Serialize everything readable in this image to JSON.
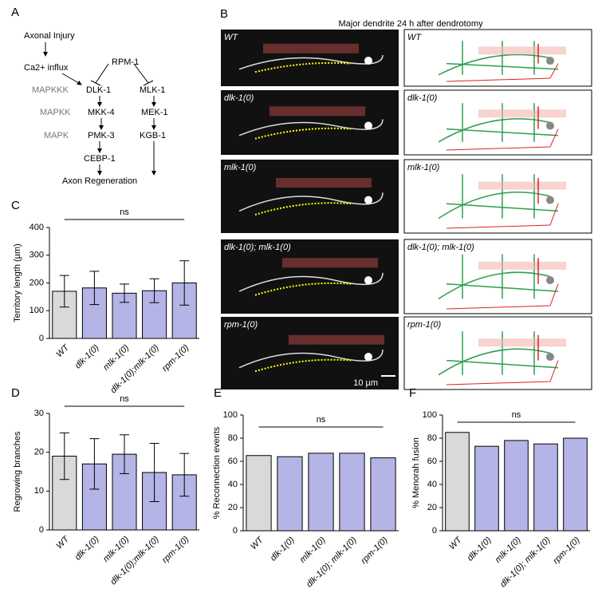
{
  "panel_a": {
    "label": "A",
    "injury": "Axonal Injury",
    "calcium": "Ca2+ influx",
    "rpm": "RPM-1",
    "mapkkk": "MAPKKK",
    "dlk": "DLK-1",
    "mlk": "MLK-1",
    "mapkk": "MAPKK",
    "mkk": "MKK-4",
    "mek": "MEK-1",
    "mapk": "MAPK",
    "pmk": "PMK-3",
    "kgb": "KGB-1",
    "cebp": "CEBP-1",
    "regen": "Axon Regeneration"
  },
  "panel_b": {
    "label": "B",
    "title": "Major dendrite 24 h after dendrotomy",
    "rows": [
      "WT",
      "dlk-1(0)",
      "mlk-1(0)",
      "dlk-1(0); mlk-1(0)",
      "rpm-1(0)"
    ],
    "scale": "10 µm"
  },
  "chart_data": [
    {
      "type": "bar",
      "panel_label": "C",
      "y_label": "Territory length (µm)",
      "annotation": "ns",
      "categories": [
        "WT",
        "dlk-1(0)",
        "mlk-1(0)",
        "dlk-1(0);mlk-1(0)",
        "rpm-1(0)"
      ],
      "values": [
        170,
        182,
        163,
        172,
        200
      ],
      "errors": [
        57,
        60,
        33,
        43,
        80
      ],
      "colors": [
        "#d9d9d9",
        "#b4b4e6",
        "#b4b4e6",
        "#b4b4e6",
        "#b4b4e6"
      ],
      "ylim": [
        0,
        400
      ],
      "yticks": [
        0,
        100,
        200,
        300,
        400
      ]
    },
    {
      "type": "bar",
      "panel_label": "D",
      "y_label": "Regrowing branches",
      "annotation": "ns",
      "categories": [
        "WT",
        "dlk-1(0)",
        "mlk-1(0)",
        "dlk-1(0);mlk-1(0)",
        "rpm-1(0)"
      ],
      "values": [
        19,
        17,
        19.5,
        14.8,
        14.2
      ],
      "errors": [
        6,
        6.5,
        5,
        7.5,
        5.5
      ],
      "colors": [
        "#d9d9d9",
        "#b4b4e6",
        "#b4b4e6",
        "#b4b4e6",
        "#b4b4e6"
      ],
      "ylim": [
        0,
        30
      ],
      "yticks": [
        0,
        10,
        20,
        30
      ]
    },
    {
      "type": "bar",
      "panel_label": "E",
      "y_label": "% Reconnection events",
      "annotation": "ns",
      "categories": [
        "WT",
        "dlk-1(0)",
        "mlk-1(0)",
        "dlk-1(0); mlk-1(0)",
        "rpm-1(0)"
      ],
      "values": [
        65,
        64,
        67,
        67,
        63
      ],
      "colors": [
        "#d9d9d9",
        "#b4b4e6",
        "#b4b4e6",
        "#b4b4e6",
        "#b4b4e6"
      ],
      "ylim": [
        0,
        100
      ],
      "yticks": [
        0,
        20,
        40,
        60,
        80,
        100
      ]
    },
    {
      "type": "bar",
      "panel_label": "F",
      "y_label": "% Menorah fusion",
      "annotation": "ns",
      "categories": [
        "WT",
        "dlk-1(0)",
        "mlk-1(0)",
        "dlk-1(0); mlk-1(0)",
        "rpm-1(0)"
      ],
      "values": [
        85,
        73,
        78,
        75,
        80
      ],
      "colors": [
        "#d9d9d9",
        "#b4b4e6",
        "#b4b4e6",
        "#b4b4e6",
        "#b4b4e6"
      ],
      "ylim": [
        0,
        100
      ],
      "yticks": [
        0,
        20,
        40,
        60,
        80,
        100
      ]
    }
  ]
}
